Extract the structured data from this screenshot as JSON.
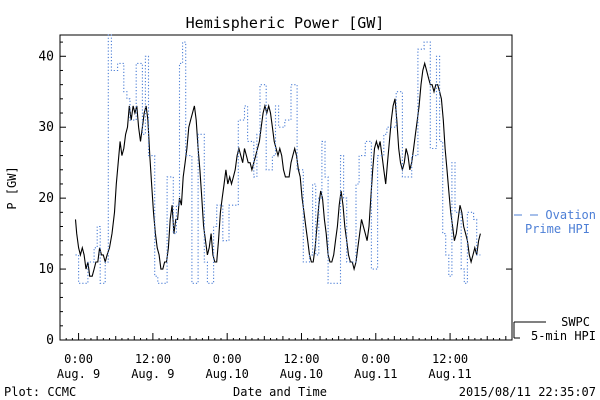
{
  "chart_data": {
    "type": "line",
    "title": "Hemispheric Power [GW]",
    "ylabel": "P [GW]",
    "xlabel": "Date and Time",
    "xlim_hours": [
      -3,
      70
    ],
    "ylim": [
      0,
      43
    ],
    "y_ticks": [
      0,
      10,
      20,
      30,
      40
    ],
    "x_ticks": [
      {
        "hour": 0,
        "time": "0:00",
        "date": "Aug. 9"
      },
      {
        "hour": 12,
        "time": "12:00",
        "date": "Aug. 9"
      },
      {
        "hour": 24,
        "time": "0:00",
        "date": "Aug.10"
      },
      {
        "hour": 36,
        "time": "12:00",
        "date": "Aug.10"
      },
      {
        "hour": 48,
        "time": "0:00",
        "date": "Aug.11"
      },
      {
        "hour": 60,
        "time": "12:00",
        "date": "Aug.11"
      }
    ],
    "series": [
      {
        "name": "SWPC 5-min HPI",
        "label_lines": [
          "SWPC",
          "5-min HPI"
        ],
        "color": "#000000",
        "style": "solid",
        "points": [
          [
            -0.5,
            17
          ],
          [
            -0.3,
            15
          ],
          [
            0,
            13
          ],
          [
            0.3,
            12
          ],
          [
            0.6,
            13
          ],
          [
            0.9,
            12
          ],
          [
            1.2,
            10
          ],
          [
            1.5,
            11
          ],
          [
            1.8,
            9
          ],
          [
            2.2,
            9
          ],
          [
            2.5,
            10
          ],
          [
            2.8,
            11
          ],
          [
            3.1,
            11
          ],
          [
            3.4,
            13
          ],
          [
            3.7,
            12
          ],
          [
            4,
            12
          ],
          [
            4.3,
            11
          ],
          [
            4.6,
            12
          ],
          [
            5,
            13
          ],
          [
            5.4,
            15
          ],
          [
            5.8,
            18
          ],
          [
            6.1,
            22
          ],
          [
            6.4,
            25
          ],
          [
            6.7,
            28
          ],
          [
            7,
            26
          ],
          [
            7.3,
            27
          ],
          [
            7.6,
            29
          ],
          [
            7.9,
            30
          ],
          [
            8.2,
            33
          ],
          [
            8.5,
            31
          ],
          [
            8.8,
            33
          ],
          [
            9.1,
            32
          ],
          [
            9.4,
            33
          ],
          [
            9.7,
            30
          ],
          [
            10,
            28
          ],
          [
            10.3,
            30
          ],
          [
            10.6,
            32
          ],
          [
            10.9,
            33
          ],
          [
            11.2,
            31
          ],
          [
            11.5,
            26
          ],
          [
            11.8,
            22
          ],
          [
            12.1,
            18
          ],
          [
            12.4,
            15
          ],
          [
            12.7,
            13
          ],
          [
            13,
            12
          ],
          [
            13.3,
            10
          ],
          [
            13.6,
            10
          ],
          [
            13.9,
            11
          ],
          [
            14.2,
            11
          ],
          [
            14.5,
            13
          ],
          [
            14.8,
            17
          ],
          [
            15.1,
            19
          ],
          [
            15.4,
            15
          ],
          [
            15.7,
            17
          ],
          [
            16,
            17
          ],
          [
            16.3,
            20
          ],
          [
            16.6,
            19
          ],
          [
            16.9,
            23
          ],
          [
            17.2,
            25
          ],
          [
            17.5,
            27
          ],
          [
            17.8,
            30
          ],
          [
            18.1,
            31
          ],
          [
            18.4,
            32
          ],
          [
            18.7,
            33
          ],
          [
            19,
            31
          ],
          [
            19.3,
            27
          ],
          [
            19.6,
            24
          ],
          [
            19.9,
            20
          ],
          [
            20.2,
            16
          ],
          [
            20.5,
            14
          ],
          [
            20.8,
            12
          ],
          [
            21.1,
            13
          ],
          [
            21.4,
            15
          ],
          [
            21.7,
            12
          ],
          [
            22,
            11
          ],
          [
            22.3,
            11
          ],
          [
            22.6,
            14
          ],
          [
            22.9,
            18
          ],
          [
            23.2,
            20
          ],
          [
            23.5,
            22
          ],
          [
            23.8,
            24
          ],
          [
            24.1,
            22
          ],
          [
            24.4,
            23
          ],
          [
            24.7,
            22
          ],
          [
            25,
            23
          ],
          [
            25.3,
            24
          ],
          [
            25.6,
            26
          ],
          [
            25.9,
            27
          ],
          [
            26.2,
            26
          ],
          [
            26.5,
            25
          ],
          [
            26.8,
            27
          ],
          [
            27.1,
            26
          ],
          [
            27.4,
            25
          ],
          [
            27.7,
            25
          ],
          [
            28,
            24
          ],
          [
            28.3,
            25
          ],
          [
            28.6,
            26
          ],
          [
            28.9,
            27
          ],
          [
            29.2,
            28
          ],
          [
            29.5,
            30
          ],
          [
            29.8,
            32
          ],
          [
            30.1,
            33
          ],
          [
            30.4,
            32
          ],
          [
            30.7,
            33
          ],
          [
            31,
            32
          ],
          [
            31.3,
            30
          ],
          [
            31.6,
            28
          ],
          [
            31.9,
            27
          ],
          [
            32.2,
            26
          ],
          [
            32.5,
            27
          ],
          [
            32.8,
            26
          ],
          [
            33.1,
            24
          ],
          [
            33.4,
            23
          ],
          [
            33.7,
            23
          ],
          [
            34,
            23
          ],
          [
            34.3,
            25
          ],
          [
            34.6,
            26
          ],
          [
            34.9,
            27
          ],
          [
            35.2,
            26
          ],
          [
            35.5,
            24
          ],
          [
            35.8,
            23
          ],
          [
            36.1,
            20
          ],
          [
            36.4,
            18
          ],
          [
            36.7,
            16
          ],
          [
            37,
            14
          ],
          [
            37.3,
            12
          ],
          [
            37.6,
            11
          ],
          [
            37.9,
            11
          ],
          [
            38.2,
            13
          ],
          [
            38.5,
            16
          ],
          [
            38.8,
            19
          ],
          [
            39.1,
            21
          ],
          [
            39.4,
            20
          ],
          [
            39.7,
            17
          ],
          [
            40,
            15
          ],
          [
            40.3,
            12
          ],
          [
            40.6,
            11
          ],
          [
            40.9,
            11
          ],
          [
            41.2,
            12
          ],
          [
            41.5,
            14
          ],
          [
            41.8,
            16
          ],
          [
            42.1,
            19
          ],
          [
            42.4,
            21
          ],
          [
            42.7,
            19
          ],
          [
            43,
            16
          ],
          [
            43.3,
            14
          ],
          [
            43.6,
            12
          ],
          [
            43.9,
            11
          ],
          [
            44.2,
            11
          ],
          [
            44.5,
            10
          ],
          [
            44.8,
            11
          ],
          [
            45.1,
            13
          ],
          [
            45.4,
            15
          ],
          [
            45.7,
            17
          ],
          [
            46,
            16
          ],
          [
            46.3,
            15
          ],
          [
            46.6,
            14
          ],
          [
            46.9,
            16
          ],
          [
            47.2,
            20
          ],
          [
            47.5,
            24
          ],
          [
            47.8,
            27
          ],
          [
            48.1,
            28
          ],
          [
            48.4,
            27
          ],
          [
            48.7,
            28
          ],
          [
            49,
            26
          ],
          [
            49.3,
            24
          ],
          [
            49.6,
            22
          ],
          [
            49.9,
            25
          ],
          [
            50.2,
            28
          ],
          [
            50.5,
            31
          ],
          [
            50.8,
            33
          ],
          [
            51.1,
            34
          ],
          [
            51.4,
            31
          ],
          [
            51.7,
            27
          ],
          [
            52,
            25
          ],
          [
            52.3,
            24
          ],
          [
            52.6,
            25
          ],
          [
            52.9,
            27
          ],
          [
            53.2,
            26
          ],
          [
            53.5,
            24
          ],
          [
            53.8,
            25
          ],
          [
            54.1,
            27
          ],
          [
            54.4,
            29
          ],
          [
            54.7,
            31
          ],
          [
            55,
            33
          ],
          [
            55.3,
            36
          ],
          [
            55.6,
            38
          ],
          [
            55.9,
            39
          ],
          [
            56.2,
            38
          ],
          [
            56.5,
            37
          ],
          [
            56.8,
            36
          ],
          [
            57.1,
            36
          ],
          [
            57.4,
            35
          ],
          [
            57.7,
            36
          ],
          [
            58,
            36
          ],
          [
            58.3,
            35
          ],
          [
            58.6,
            34
          ],
          [
            58.9,
            31
          ],
          [
            59.2,
            27
          ],
          [
            59.5,
            24
          ],
          [
            59.8,
            21
          ],
          [
            60.1,
            18
          ],
          [
            60.4,
            16
          ],
          [
            60.7,
            14
          ],
          [
            61,
            15
          ],
          [
            61.3,
            17
          ],
          [
            61.6,
            19
          ],
          [
            61.9,
            18
          ],
          [
            62.2,
            16
          ],
          [
            62.5,
            15
          ],
          [
            62.8,
            14
          ],
          [
            63.1,
            12
          ],
          [
            63.4,
            11
          ],
          [
            63.7,
            12
          ],
          [
            64,
            13
          ],
          [
            64.3,
            12
          ],
          [
            64.6,
            14
          ],
          [
            64.9,
            15
          ]
        ]
      },
      {
        "name": "Ovation Prime HPI",
        "label_lines": [
          "Ovation",
          "Prime HPI"
        ],
        "color": "#4d7fd6",
        "style": "dotted-step",
        "points": [
          [
            -0.5,
            12
          ],
          [
            0,
            8
          ],
          [
            1.5,
            11
          ],
          [
            2.5,
            13
          ],
          [
            3.0,
            16
          ],
          [
            3.5,
            8
          ],
          [
            4.3,
            11
          ],
          [
            4.8,
            43
          ],
          [
            5.3,
            38
          ],
          [
            6.3,
            39
          ],
          [
            7.3,
            35
          ],
          [
            7.8,
            34
          ],
          [
            8.3,
            31
          ],
          [
            9.3,
            39
          ],
          [
            10.3,
            29
          ],
          [
            10.8,
            40
          ],
          [
            11.3,
            26
          ],
          [
            12.3,
            9
          ],
          [
            12.8,
            8
          ],
          [
            14.3,
            23
          ],
          [
            15.3,
            15
          ],
          [
            15.8,
            19
          ],
          [
            16.3,
            39
          ],
          [
            16.8,
            42
          ],
          [
            17.3,
            26
          ],
          [
            18.3,
            8
          ],
          [
            19.3,
            29
          ],
          [
            20.3,
            11
          ],
          [
            20.8,
            8
          ],
          [
            21.8,
            16
          ],
          [
            22.3,
            19
          ],
          [
            23.3,
            14
          ],
          [
            24.3,
            19
          ],
          [
            25.3,
            19
          ],
          [
            25.8,
            31
          ],
          [
            26.8,
            33
          ],
          [
            27.3,
            28
          ],
          [
            28.3,
            23
          ],
          [
            28.8,
            29
          ],
          [
            29.3,
            36
          ],
          [
            30.3,
            24
          ],
          [
            31.3,
            26
          ],
          [
            31.8,
            33
          ],
          [
            32.3,
            30
          ],
          [
            33.3,
            31
          ],
          [
            33.8,
            31
          ],
          [
            34.3,
            36
          ],
          [
            35.3,
            24
          ],
          [
            36.3,
            11
          ],
          [
            37.3,
            12
          ],
          [
            37.8,
            22
          ],
          [
            38.3,
            12
          ],
          [
            38.8,
            20
          ],
          [
            39.3,
            28
          ],
          [
            39.8,
            23
          ],
          [
            40.3,
            8
          ],
          [
            41.3,
            8
          ],
          [
            42.3,
            26
          ],
          [
            42.8,
            20
          ],
          [
            43.3,
            11
          ],
          [
            44.3,
            11
          ],
          [
            44.8,
            22
          ],
          [
            45.3,
            26
          ],
          [
            46.3,
            28
          ],
          [
            47.3,
            10
          ],
          [
            48.3,
            26
          ],
          [
            49.3,
            29
          ],
          [
            49.8,
            30
          ],
          [
            51.3,
            35
          ],
          [
            52.3,
            23
          ],
          [
            53.3,
            23
          ],
          [
            53.8,
            26
          ],
          [
            54.8,
            41
          ],
          [
            55.8,
            42
          ],
          [
            56.8,
            27
          ],
          [
            57.8,
            40
          ],
          [
            58.3,
            28
          ],
          [
            58.8,
            15
          ],
          [
            59.3,
            12
          ],
          [
            59.8,
            9
          ],
          [
            60.3,
            25
          ],
          [
            60.8,
            18
          ],
          [
            61.8,
            10
          ],
          [
            62.3,
            8
          ],
          [
            62.8,
            18
          ],
          [
            63.8,
            17
          ],
          [
            64.3,
            12
          ],
          [
            64.9,
            12
          ]
        ]
      }
    ],
    "footer_left": "Plot: CCMC",
    "footer_right": "2015/08/11 22:35:07"
  }
}
